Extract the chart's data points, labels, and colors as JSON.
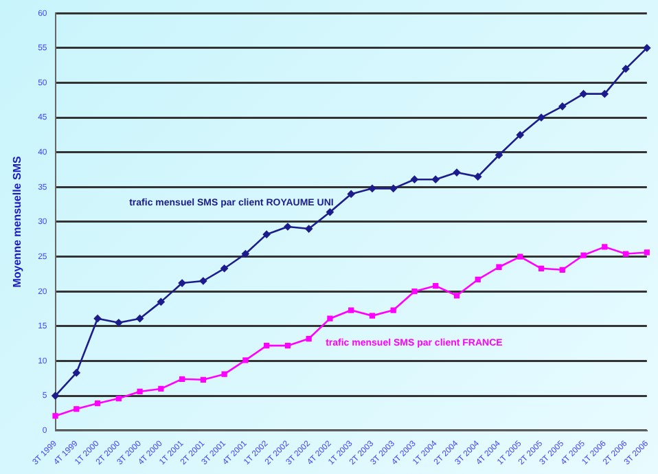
{
  "chart_data": {
    "type": "line",
    "ylabel": "Moyenne mensuelle SMS",
    "categories": [
      "3T 1999",
      "4T 1999",
      "1T 2000",
      "2T 2000",
      "3T 2000",
      "4T 2000",
      "1T 2001",
      "2T 2001",
      "3T 2001",
      "4T 2001",
      "1T 2002",
      "2T 2002",
      "3T 2002",
      "4T 2002",
      "1T 2003",
      "2T 2003",
      "3T 2003",
      "4T 2003",
      "1T 2004",
      "2T 2004",
      "3T 2004",
      "4T 2004",
      "1T 2005",
      "2T 2005",
      "3T 2005",
      "4T 2005",
      "1T 2006",
      "2T 2006",
      "3T 2006"
    ],
    "series": [
      {
        "name": "trafic mensuel SMS par client ROYAUME UNI",
        "color": "#1c1c8c",
        "marker": "diamond",
        "values": [
          5,
          8.3,
          16.1,
          15.5,
          16.1,
          18.5,
          21.2,
          21.5,
          23.3,
          25.4,
          28.2,
          29.3,
          29,
          31.4,
          34,
          34.8,
          34.8,
          36.1,
          36.1,
          37.1,
          36.5,
          39.6,
          42.5,
          45,
          46.6,
          48.4,
          48.4,
          52,
          55
        ]
      },
      {
        "name": "trafic mensuel SMS par client FRANCE",
        "color": "#ff00ff",
        "marker": "square",
        "values": [
          2.1,
          3.1,
          3.9,
          4.6,
          5.6,
          6,
          7.4,
          7.3,
          8.1,
          10.1,
          12.2,
          12.2,
          13.2,
          16.1,
          17.3,
          16.5,
          17.3,
          20,
          20.8,
          19.4,
          21.7,
          23.5,
          25,
          23.3,
          23.1,
          25.2,
          26.4,
          25.4,
          25.6
        ]
      }
    ],
    "ylim": [
      0,
      60
    ],
    "yticks": [
      0,
      5,
      10,
      15,
      20,
      25,
      30,
      35,
      40,
      45,
      50,
      55,
      60
    ],
    "grid": "y",
    "legend": false,
    "line_style": "solid"
  }
}
